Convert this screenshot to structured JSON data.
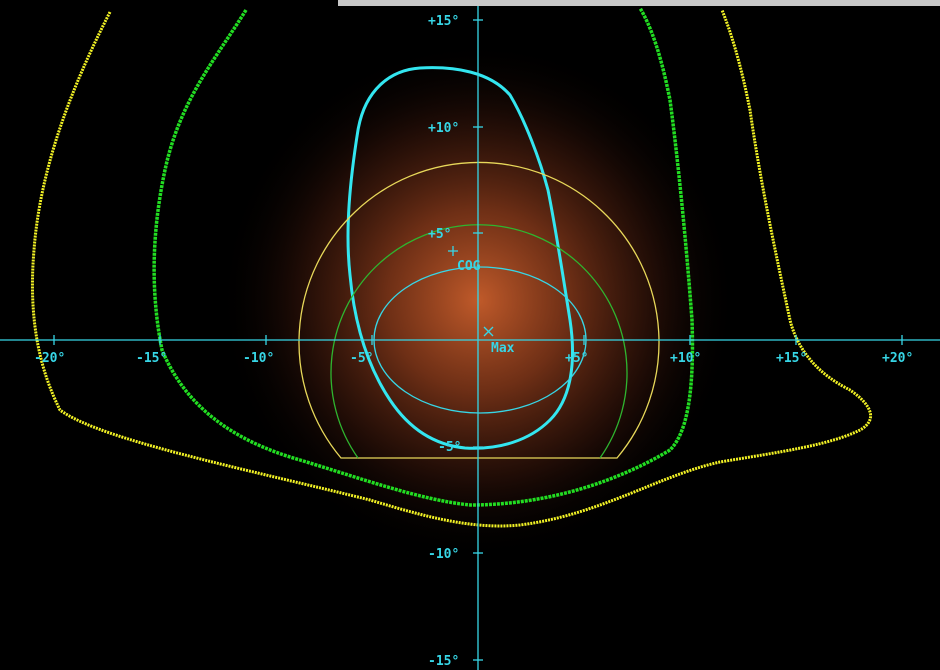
{
  "window": {
    "title_bar_visible": true
  },
  "plot": {
    "background": "#000000",
    "glow_color": "#c05a2a",
    "axis_color": "#37d6e6",
    "x_tick_labels": [
      "-20°",
      "-15°",
      "-10°",
      "-5°",
      "+5°",
      "+10°",
      "+15°",
      "+20°"
    ],
    "y_tick_labels": [
      "+15°",
      "+10°",
      "+5°",
      "-5°",
      "-10°",
      "-15°"
    ],
    "markers": {
      "cog_label": "COG",
      "max_label": "Max"
    },
    "contours": [
      {
        "name": "cyan-contour",
        "color": "#33e6f0"
      },
      {
        "name": "green-contour",
        "color": "#22dd22"
      },
      {
        "name": "yellow-contour",
        "color": "#f2f225"
      }
    ],
    "circles": [
      {
        "name": "yellow-circle",
        "color": "#e8d85a"
      },
      {
        "name": "green-circle",
        "color": "#2fb52f"
      },
      {
        "name": "cyan-ellipse",
        "color": "#37d6e6"
      }
    ]
  }
}
